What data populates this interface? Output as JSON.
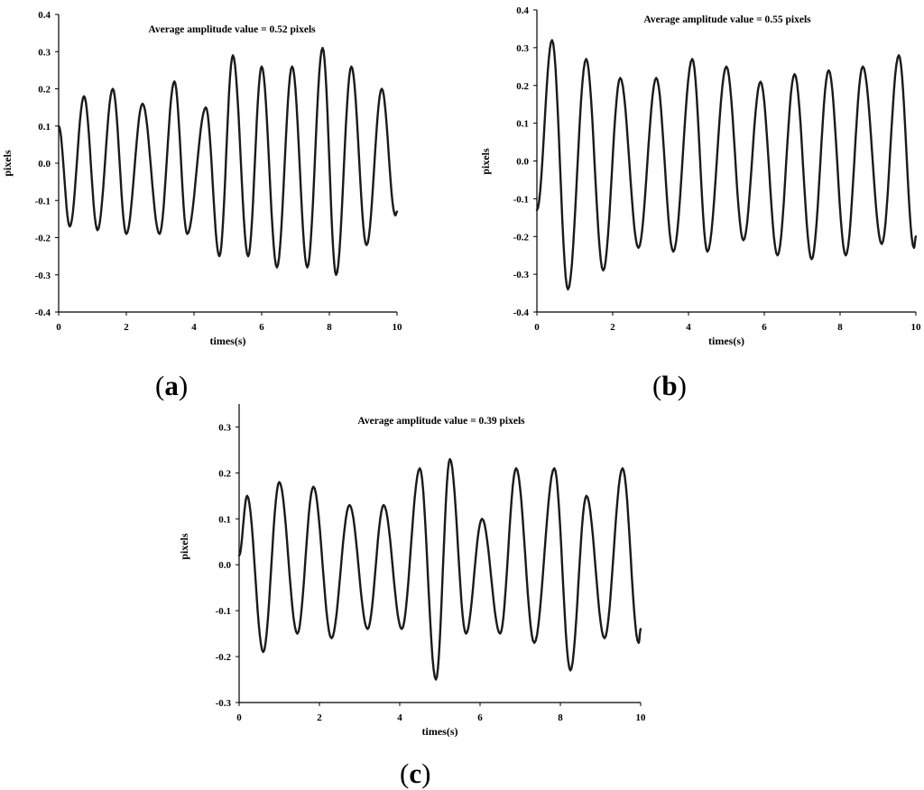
{
  "colors": {
    "line": "#1a1a1a",
    "axis": "#000000",
    "background": "#ffffff"
  },
  "chart_data": [
    {
      "panel": "a",
      "type": "line",
      "annotation": "Average amplitude value = 0.52 pixels",
      "xlabel": "times(s)",
      "ylabel": "pixels",
      "xlim": [
        0,
        10
      ],
      "ylim": [
        -0.4,
        0.4
      ],
      "xticks": [
        "0",
        "2",
        "4",
        "6",
        "8",
        "10"
      ],
      "yticks": [
        "0.4",
        "0.3",
        "0.2",
        "0.1",
        "0.0",
        "-0.1",
        "-0.2",
        "-0.3",
        "-0.4"
      ],
      "grid": false,
      "series": [
        {
          "x": [
            0,
            0.33,
            0.75,
            1.15,
            1.6,
            2.0,
            2.48,
            2.98,
            3.42,
            3.8,
            4.35,
            4.75,
            5.15,
            5.6,
            6.0,
            6.45,
            6.9,
            7.35,
            7.8,
            8.2,
            8.65,
            9.1,
            9.55,
            9.95,
            10.0
          ],
          "y": [
            0.1,
            -0.17,
            0.18,
            -0.18,
            0.2,
            -0.19,
            0.16,
            -0.19,
            0.22,
            -0.19,
            0.15,
            -0.25,
            0.29,
            -0.25,
            0.26,
            -0.28,
            0.26,
            -0.28,
            0.31,
            -0.3,
            0.26,
            -0.22,
            0.2,
            -0.14,
            -0.13
          ]
        }
      ]
    },
    {
      "panel": "b",
      "type": "line",
      "annotation": "Average amplitude value = 0.55 pixels",
      "xlabel": "times(s)",
      "ylabel": "pixels",
      "xlim": [
        0,
        10
      ],
      "ylim": [
        -0.4,
        0.4
      ],
      "xticks": [
        "0",
        "2",
        "4",
        "6",
        "8",
        "10"
      ],
      "yticks": [
        "0.4",
        "0.3",
        "0.2",
        "0.1",
        "0.0",
        "-0.1",
        "-0.2",
        "-0.3",
        "-0.4"
      ],
      "grid": false,
      "series": [
        {
          "x": [
            0,
            0.4,
            0.82,
            1.3,
            1.75,
            2.2,
            2.68,
            3.15,
            3.6,
            4.1,
            4.5,
            5.0,
            5.45,
            5.9,
            6.35,
            6.8,
            7.25,
            7.7,
            8.15,
            8.6,
            9.1,
            9.55,
            9.95,
            10.0
          ],
          "y": [
            -0.13,
            0.32,
            -0.34,
            0.27,
            -0.29,
            0.22,
            -0.23,
            0.22,
            -0.24,
            0.27,
            -0.24,
            0.25,
            -0.21,
            0.21,
            -0.25,
            0.23,
            -0.26,
            0.24,
            -0.25,
            0.25,
            -0.22,
            0.28,
            -0.23,
            -0.2
          ]
        }
      ]
    },
    {
      "panel": "c",
      "type": "line",
      "annotation": "Average amplitude value = 0.39 pixels",
      "xlabel": "times(s)",
      "ylabel": "pixels",
      "xlim": [
        0,
        10
      ],
      "ylim": [
        -0.3,
        0.35
      ],
      "xticks": [
        "0",
        "2",
        "4",
        "6",
        "8",
        "10"
      ],
      "yticks": [
        "0.3",
        "0.2",
        "0.1",
        "0.0",
        "-0.1",
        "-0.2",
        "-0.3"
      ],
      "grid": false,
      "series": [
        {
          "x": [
            0,
            0.2,
            0.6,
            1.0,
            1.45,
            1.85,
            2.3,
            2.75,
            3.2,
            3.6,
            4.05,
            4.5,
            4.9,
            5.25,
            5.65,
            6.05,
            6.5,
            6.9,
            7.35,
            7.85,
            8.25,
            8.65,
            9.1,
            9.55,
            9.95,
            10.0
          ],
          "y": [
            0.02,
            0.15,
            -0.19,
            0.18,
            -0.15,
            0.17,
            -0.16,
            0.13,
            -0.14,
            0.13,
            -0.14,
            0.21,
            -0.25,
            0.23,
            -0.15,
            0.1,
            -0.15,
            0.21,
            -0.17,
            0.21,
            -0.23,
            0.15,
            -0.16,
            0.21,
            -0.17,
            -0.14
          ]
        }
      ]
    }
  ],
  "panel_labels": [
    "a",
    "b",
    "c"
  ]
}
